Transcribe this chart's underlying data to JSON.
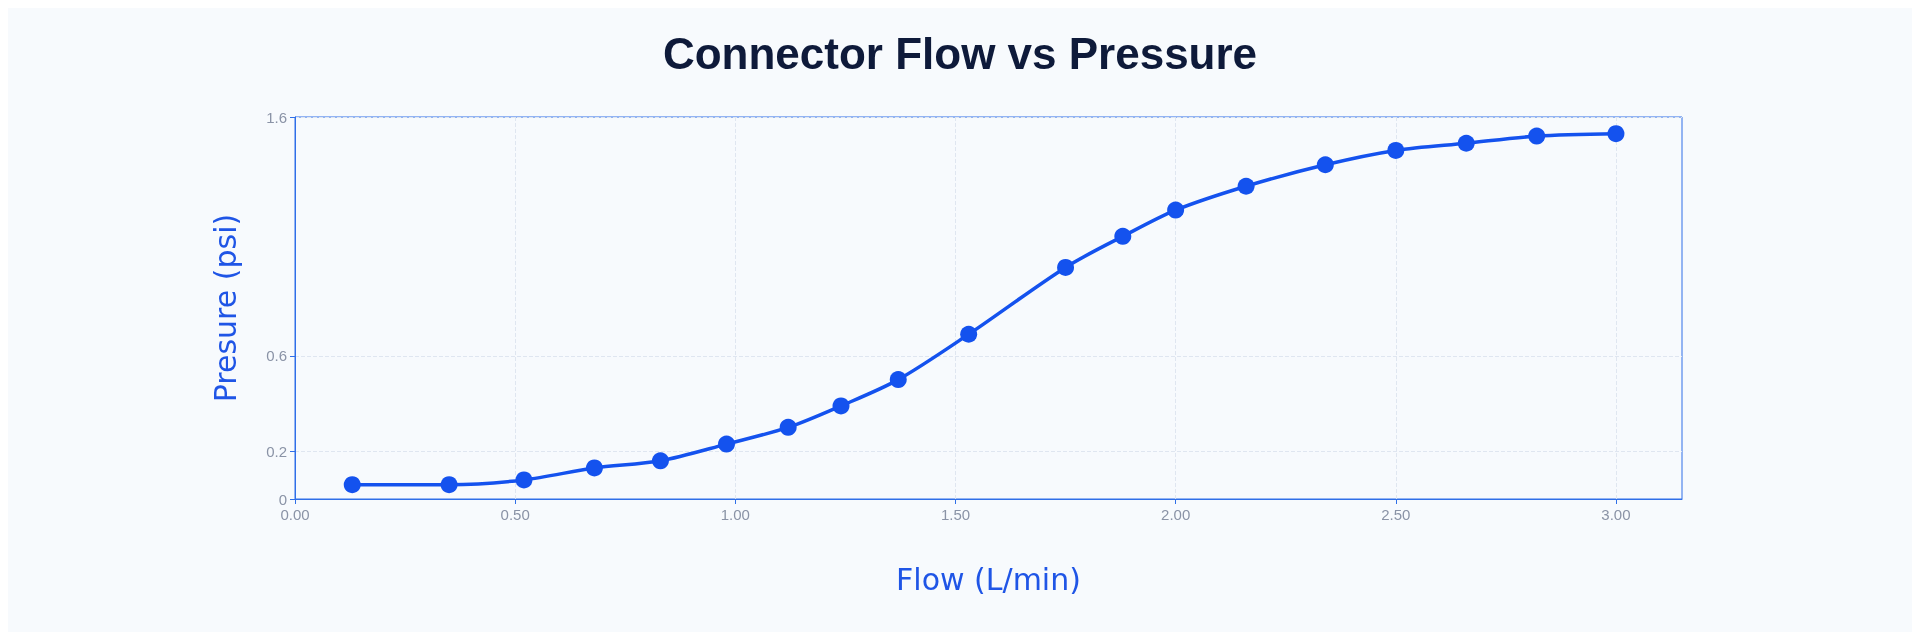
{
  "chart_data": {
    "type": "line",
    "title": "Connector Flow vs Pressure",
    "xlabel": "Flow (L/min)",
    "ylabel": "Presure (psi)",
    "x": [
      0.13,
      0.35,
      0.52,
      0.68,
      0.83,
      0.98,
      1.12,
      1.24,
      1.37,
      1.53,
      1.75,
      1.88,
      2.0,
      2.16,
      2.34,
      2.5,
      2.66,
      2.82,
      3.0
    ],
    "series": [
      {
        "color": "#1452ee",
        "values": [
          0.06,
          0.06,
          0.08,
          0.13,
          0.16,
          0.23,
          0.3,
          0.39,
          0.5,
          0.69,
          0.97,
          1.1,
          1.21,
          1.31,
          1.4,
          1.46,
          1.49,
          1.52,
          1.53
        ]
      }
    ],
    "xlim": [
      0,
      3.15
    ],
    "xticks": [
      {
        "value": 0,
        "label": "0.00"
      },
      {
        "value": 0.5,
        "label": "0.50"
      },
      {
        "value": 1.0,
        "label": "1.00"
      },
      {
        "value": 1.5,
        "label": "1.50"
      },
      {
        "value": 2.0,
        "label": "2.00"
      },
      {
        "value": 2.5,
        "label": "2.50"
      },
      {
        "value": 3.0,
        "label": "3.00"
      }
    ],
    "ylim": [
      0,
      1.6
    ],
    "yticks": [
      0,
      0.2,
      0.6,
      1.6
    ],
    "grid": true,
    "marker": "circle",
    "line_style": "solid"
  }
}
